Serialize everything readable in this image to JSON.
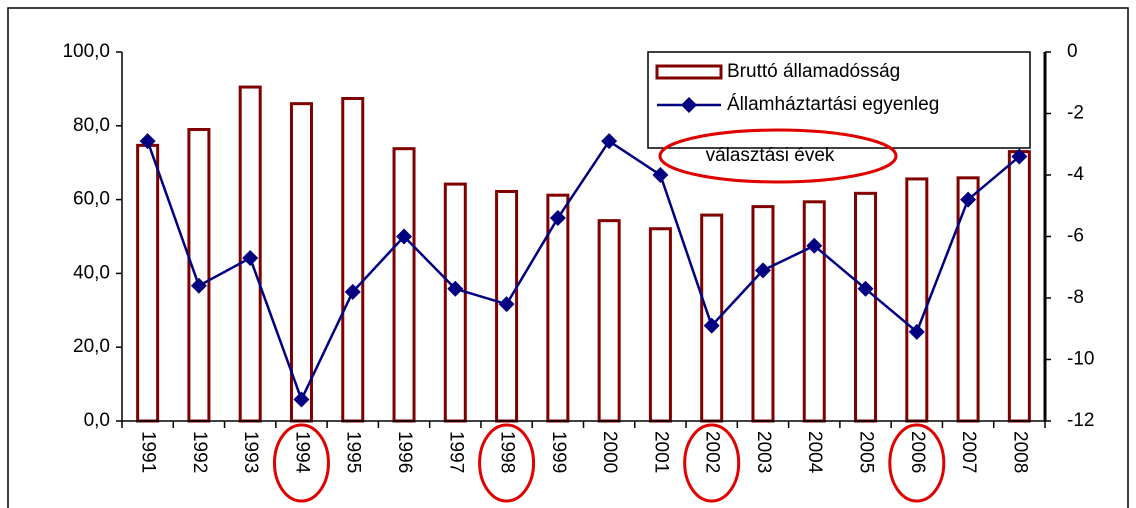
{
  "chart_data": {
    "type": "bar",
    "categories": [
      "1991",
      "1992",
      "1993",
      "1994",
      "1995",
      "1996",
      "1997",
      "1998",
      "1999",
      "2000",
      "2001",
      "2002",
      "2003",
      "2004",
      "2005",
      "2006",
      "2007",
      "2008"
    ],
    "series": [
      {
        "name": "Bruttó államadósság",
        "type": "bar",
        "color": "#800000",
        "values": [
          74.7,
          79.0,
          90.5,
          86.0,
          87.4,
          73.8,
          64.2,
          62.2,
          61.2,
          54.3,
          52.1,
          55.8,
          58.1,
          59.4,
          61.7,
          65.6,
          65.9,
          73.0
        ]
      },
      {
        "name": "Államháztartási egyenleg",
        "type": "line",
        "axis": "y2",
        "color": "#000080",
        "values": [
          -2.9,
          -7.6,
          -6.7,
          -11.3,
          -7.8,
          -6.0,
          -7.7,
          -8.2,
          -5.4,
          -2.9,
          -4.0,
          -8.9,
          -7.1,
          -6.3,
          -7.7,
          -9.1,
          -4.8,
          -3.4
        ]
      }
    ],
    "ylim": [
      0,
      100
    ],
    "yticks": [
      {
        "value": 0,
        "label": "0,0"
      },
      {
        "value": 20,
        "label": "20,0"
      },
      {
        "value": 40,
        "label": "40,0"
      },
      {
        "value": 60,
        "label": "60,0"
      },
      {
        "value": 80,
        "label": "80,0"
      },
      {
        "value": 100,
        "label": "100,0"
      }
    ],
    "y2lim": [
      -12,
      0
    ],
    "y2ticks": [
      -12,
      -10,
      -8,
      -6,
      -4,
      -2,
      0
    ],
    "annotation": "választási évek",
    "legend": "upper right"
  }
}
